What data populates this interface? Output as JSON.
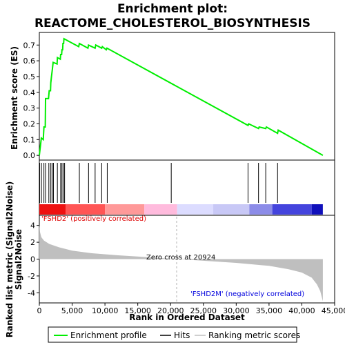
{
  "chart_data": {
    "type": "line",
    "title_line1": "Enrichment plot:",
    "title_line2": "REACTOME_CHOLESTEROL_BIOSYNTHESIS",
    "es_ylabel": "Enrichment score (ES)",
    "metric_ylabel_line1": "Ranked list metric (Signal2Noise)",
    "metric_ylabel_line2": "Signal2Noise",
    "xlabel": "Rank in Ordered Dataset",
    "xlim": [
      0,
      45000
    ],
    "x_ticks": [
      0,
      5000,
      10000,
      15000,
      20000,
      25000,
      30000,
      35000,
      40000,
      45000
    ],
    "x_tick_labels": [
      "0",
      "5,000",
      "10,000",
      "15,000",
      "20,000",
      "25,000",
      "30,000",
      "35,000",
      "40,000",
      "45,000"
    ],
    "es_ylim": [
      -0.03,
      0.78
    ],
    "es_ticks": [
      0.0,
      0.1,
      0.2,
      0.3,
      0.4,
      0.5,
      0.6,
      0.7
    ],
    "es_tick_labels": [
      "0.0",
      "0.1",
      "0.2",
      "0.3",
      "0.4",
      "0.5",
      "0.6",
      "0.7"
    ],
    "metric_ylim": [
      -5.2,
      5.2
    ],
    "metric_ticks": [
      4,
      2,
      0,
      -2,
      -4
    ],
    "metric_tick_labels": [
      "4",
      "2",
      "0",
      "-2",
      "-4"
    ],
    "total_rank": 43200,
    "zero_cross": 20924,
    "zero_cross_label": "Zero cross at 20924",
    "positive_label": "'FSHD2' (positively correlated)",
    "negative_label": "'FSHD2M' (negatively correlated)",
    "legend": {
      "enrichment": "Enrichment profile",
      "hits": "Hits",
      "ranking": "Ranking metric scores"
    },
    "colors": {
      "enrichment_line": "#00ee00",
      "hits": "#000000",
      "positive_text": "#dd0000",
      "negative_text": "#0000dd",
      "metric_fill": "#bfbfbf",
      "zero_cross_line": "#b0b0b0"
    },
    "es_profile": [
      [
        0,
        0.0
      ],
      [
        300,
        0.11
      ],
      [
        600,
        0.1
      ],
      [
        700,
        0.18
      ],
      [
        900,
        0.18
      ],
      [
        950,
        0.36
      ],
      [
        1400,
        0.36
      ],
      [
        1500,
        0.41
      ],
      [
        1700,
        0.41
      ],
      [
        1750,
        0.46
      ],
      [
        1850,
        0.5
      ],
      [
        2000,
        0.55
      ],
      [
        2100,
        0.59
      ],
      [
        2700,
        0.58
      ],
      [
        2750,
        0.62
      ],
      [
        3200,
        0.61
      ],
      [
        3250,
        0.64
      ],
      [
        3400,
        0.64
      ],
      [
        3450,
        0.67
      ],
      [
        3550,
        0.67
      ],
      [
        3600,
        0.71
      ],
      [
        3700,
        0.71
      ],
      [
        3750,
        0.74
      ],
      [
        6000,
        0.69
      ],
      [
        6100,
        0.71
      ],
      [
        7400,
        0.68
      ],
      [
        7500,
        0.7
      ],
      [
        8500,
        0.68
      ],
      [
        8600,
        0.7
      ],
      [
        9500,
        0.68
      ],
      [
        9600,
        0.69
      ],
      [
        10200,
        0.67
      ],
      [
        10300,
        0.68
      ],
      [
        31800,
        0.19
      ],
      [
        31900,
        0.2
      ],
      [
        33400,
        0.17
      ],
      [
        33500,
        0.18
      ],
      [
        34500,
        0.17
      ],
      [
        34600,
        0.18
      ],
      [
        36300,
        0.14
      ],
      [
        36400,
        0.16
      ],
      [
        43200,
        0.0
      ]
    ],
    "hits": [
      50,
      320,
      700,
      950,
      1450,
      1750,
      1950,
      2150,
      2750,
      3250,
      3450,
      3650,
      3850,
      6100,
      7500,
      8500,
      9500,
      10350,
      20100,
      31800,
      33400,
      34500,
      36300
    ],
    "metric_profile": [
      [
        0,
        4.1
      ],
      [
        100,
        3.2
      ],
      [
        300,
        2.6
      ],
      [
        700,
        2.2
      ],
      [
        1500,
        1.8
      ],
      [
        3000,
        1.4
      ],
      [
        5000,
        1.0
      ],
      [
        8000,
        0.7
      ],
      [
        12000,
        0.45
      ],
      [
        16000,
        0.25
      ],
      [
        20924,
        0.0
      ],
      [
        25000,
        -0.2
      ],
      [
        30000,
        -0.45
      ],
      [
        35000,
        -0.8
      ],
      [
        38000,
        -1.2
      ],
      [
        40000,
        -1.6
      ],
      [
        41500,
        -2.2
      ],
      [
        42300,
        -3.0
      ],
      [
        42800,
        -3.8
      ],
      [
        43200,
        -5.0
      ]
    ],
    "heat_bands": [
      [
        0,
        4000,
        "#ee1111"
      ],
      [
        4000,
        10000,
        "#ff5555"
      ],
      [
        10000,
        16000,
        "#ff9999"
      ],
      [
        16000,
        21000,
        "#ffbbdd"
      ],
      [
        21000,
        26500,
        "#dcdcff"
      ],
      [
        26500,
        32000,
        "#c8c8f6"
      ],
      [
        32000,
        35500,
        "#8c8ce8"
      ],
      [
        35500,
        41500,
        "#4444dd"
      ],
      [
        41500,
        43200,
        "#1010bb"
      ]
    ]
  }
}
